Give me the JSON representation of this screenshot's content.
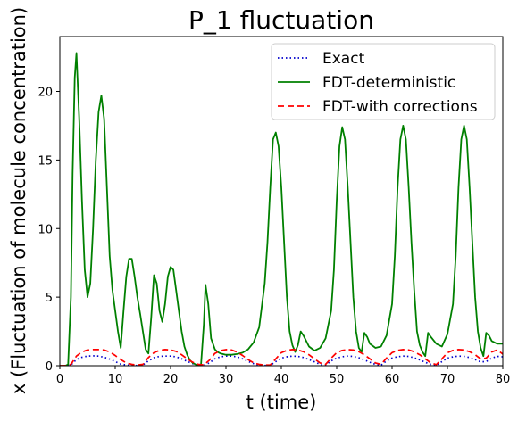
{
  "chart_data": {
    "type": "line",
    "title": "P_1 fluctuation",
    "xlabel": "t (time)",
    "ylabel": "x (Fluctuation of molecule concentration)",
    "xlim": [
      0,
      80
    ],
    "ylim": [
      0,
      24
    ],
    "xticks": [
      "0",
      "10",
      "20",
      "30",
      "40",
      "50",
      "60",
      "70",
      "80"
    ],
    "yticks": [
      "0",
      "5",
      "10",
      "15",
      "20"
    ],
    "grid": false,
    "legend_position": "top-right",
    "series": [
      {
        "name": "Exact",
        "color": "#0000cc",
        "style": "dotted",
        "x": [
          0,
          1,
          2,
          3,
          4,
          5,
          6,
          7,
          8,
          9,
          10,
          11,
          12,
          13,
          14,
          15,
          16,
          17,
          18,
          19,
          20,
          21,
          22,
          23,
          24,
          25,
          26,
          27,
          28,
          29,
          30,
          31,
          32,
          33,
          34,
          35,
          36,
          37,
          38,
          39,
          40,
          41,
          42,
          43,
          44,
          45,
          46,
          47,
          48,
          49,
          50,
          51,
          52,
          53,
          54,
          55,
          56,
          57,
          58,
          59,
          60,
          61,
          62,
          63,
          64,
          65,
          66,
          67,
          68,
          69,
          70,
          71,
          72,
          73,
          74,
          75,
          76,
          77,
          78,
          79,
          80
        ],
        "y": [
          0,
          0,
          0.05,
          0.45,
          0.62,
          0.7,
          0.72,
          0.7,
          0.62,
          0.48,
          0.3,
          0.12,
          0.05,
          0.02,
          0.01,
          0.05,
          0.35,
          0.58,
          0.68,
          0.7,
          0.7,
          0.65,
          0.5,
          0.32,
          0.15,
          0.05,
          0.03,
          0.2,
          0.5,
          0.65,
          0.7,
          0.7,
          0.65,
          0.5,
          0.32,
          0.15,
          0.05,
          0.02,
          0.02,
          0.3,
          0.55,
          0.65,
          0.7,
          0.68,
          0.6,
          0.45,
          0.28,
          0.1,
          0.04,
          0.35,
          0.55,
          0.66,
          0.7,
          0.68,
          0.58,
          0.42,
          0.25,
          0.1,
          0.04,
          0.35,
          0.56,
          0.66,
          0.7,
          0.68,
          0.58,
          0.42,
          0.25,
          0.1,
          0.03,
          0.3,
          0.55,
          0.65,
          0.7,
          0.68,
          0.6,
          0.45,
          0.28,
          0.3,
          0.55,
          0.68,
          0.65
        ]
      },
      {
        "name": "FDT-deterministic",
        "color": "#008000",
        "style": "solid",
        "x": [
          0,
          1,
          1.5,
          2,
          2.3,
          2.7,
          3,
          3.5,
          4,
          4.5,
          5,
          5.5,
          6,
          6.5,
          7,
          7.5,
          8,
          8.5,
          9,
          9.5,
          10,
          10.5,
          11,
          11.5,
          12,
          12.5,
          13,
          13.5,
          14,
          14.5,
          15,
          15.5,
          16,
          16.5,
          17,
          17.5,
          18,
          18.5,
          19,
          19.5,
          20,
          20.5,
          21,
          21.5,
          22,
          22.5,
          23,
          23.5,
          24,
          24.5,
          25,
          25.5,
          26,
          26.3,
          26.8,
          27.3,
          28,
          28.5,
          29,
          30,
          31,
          32,
          33,
          34,
          35,
          36,
          37,
          37.5,
          38,
          38.5,
          39,
          39.5,
          40,
          40.5,
          41,
          41.5,
          42,
          42.5,
          43,
          43.5,
          44,
          44.5,
          45,
          46,
          47,
          48,
          49,
          49.5,
          50,
          50.5,
          51,
          51.5,
          52,
          52.5,
          53,
          53.5,
          54,
          54.5,
          55,
          55.5,
          56,
          57,
          58,
          59,
          60,
          60.5,
          61,
          61.5,
          62,
          62.5,
          63,
          63.5,
          64,
          64.5,
          65,
          65.5,
          66,
          66.5,
          67,
          68,
          69,
          70,
          71,
          71.5,
          72,
          72.5,
          73,
          73.5,
          74,
          74.5,
          75,
          75.5,
          76,
          76.5,
          77,
          77.5,
          78,
          79,
          80
        ],
        "y": [
          0,
          0,
          0.1,
          5,
          14,
          21,
          22.8,
          18,
          12,
          7,
          5,
          6,
          10,
          15,
          18.5,
          19.7,
          18,
          13,
          8,
          5.5,
          4,
          2.5,
          1.3,
          4,
          6.5,
          7.8,
          7.8,
          6.5,
          5,
          3.8,
          2.5,
          1.2,
          0.9,
          3.5,
          6.6,
          6,
          4,
          3.2,
          4.5,
          6.5,
          7.2,
          7,
          5.5,
          4,
          2.5,
          1.4,
          0.8,
          0.4,
          0.2,
          0.1,
          0.05,
          0.1,
          3,
          5.9,
          4.5,
          2,
          1.2,
          1,
          0.9,
          0.8,
          0.8,
          0.85,
          0.95,
          1.2,
          1.7,
          2.8,
          6,
          9,
          13,
          16.5,
          17,
          16,
          13,
          9,
          5,
          2.5,
          1.5,
          1,
          1.5,
          2.5,
          2.2,
          1.8,
          1.4,
          1.1,
          1.3,
          2,
          4,
          7,
          12,
          16,
          17.4,
          16.5,
          13,
          9,
          5,
          2.5,
          1.3,
          1,
          2.4,
          2.1,
          1.6,
          1.3,
          1.4,
          2.2,
          4.5,
          8,
          13,
          16.5,
          17.5,
          16.5,
          13,
          9,
          5.5,
          2.5,
          1.5,
          1,
          0.7,
          2.4,
          2.1,
          1.6,
          1.4,
          2.3,
          4.5,
          8,
          13,
          16.5,
          17.5,
          16.5,
          13,
          9,
          5,
          2.5,
          1.3,
          0.7,
          2.4,
          2.2,
          1.8,
          1.6,
          1.6
        ]
      },
      {
        "name": "FDT-with corrections",
        "color": "#ff0000",
        "style": "dashed",
        "x": [
          0,
          1,
          2,
          3,
          4,
          5,
          6,
          7,
          8,
          9,
          10,
          11,
          12,
          13,
          14,
          15,
          16,
          17,
          18,
          19,
          20,
          21,
          22,
          23,
          24,
          25,
          26,
          27,
          28,
          29,
          30,
          31,
          32,
          33,
          34,
          35,
          36,
          37,
          38,
          39,
          40,
          41,
          42,
          43,
          44,
          45,
          46,
          47,
          48,
          49,
          50,
          51,
          52,
          53,
          54,
          55,
          56,
          57,
          58,
          59,
          60,
          61,
          62,
          63,
          64,
          65,
          66,
          67,
          68,
          69,
          70,
          71,
          72,
          73,
          74,
          75,
          76,
          77,
          78,
          79,
          80
        ],
        "y": [
          0,
          0,
          0.1,
          0.7,
          1.0,
          1.15,
          1.18,
          1.18,
          1.15,
          1.0,
          0.75,
          0.45,
          0.2,
          0.1,
          0.05,
          0.1,
          0.6,
          0.95,
          1.12,
          1.18,
          1.15,
          1.05,
          0.8,
          0.5,
          0.25,
          0.1,
          0.05,
          0.4,
          0.9,
          1.1,
          1.18,
          1.15,
          1.0,
          0.75,
          0.45,
          0.2,
          0.1,
          0.05,
          0.05,
          0.5,
          0.95,
          1.12,
          1.18,
          1.15,
          1.02,
          0.8,
          0.5,
          0.2,
          0.1,
          0.55,
          0.95,
          1.12,
          1.18,
          1.15,
          1.02,
          0.8,
          0.5,
          0.2,
          0.1,
          0.55,
          0.95,
          1.12,
          1.18,
          1.15,
          1.02,
          0.8,
          0.5,
          0.2,
          0.08,
          0.5,
          0.95,
          1.12,
          1.18,
          1.15,
          1.02,
          0.8,
          0.5,
          0.55,
          1.0,
          1.15,
          0.85
        ]
      }
    ]
  }
}
